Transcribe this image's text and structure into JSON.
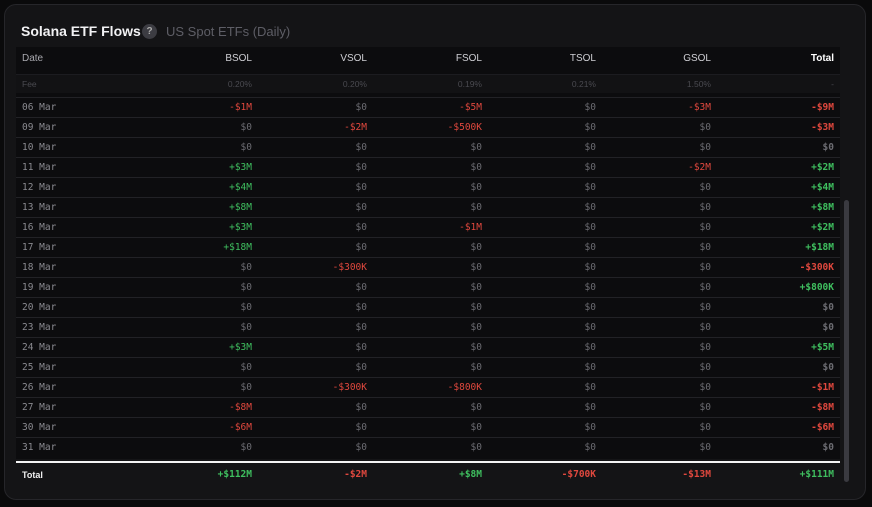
{
  "header": {
    "title": "Solana ETF Flows",
    "help": "?",
    "subtitle": "US Spot ETFs (Daily)"
  },
  "columns": [
    "Date",
    "BSOL",
    "VSOL",
    "FSOL",
    "TSOL",
    "GSOL",
    "Total"
  ],
  "fees": [
    "Fee",
    "0.20%",
    "0.20%",
    "0.19%",
    "0.21%",
    "1.50%",
    "-"
  ],
  "rows": [
    [
      "06 Mar",
      "-$1M",
      "$0",
      "-$5M",
      "$0",
      "-$3M",
      "-$9M"
    ],
    [
      "09 Mar",
      "$0",
      "-$2M",
      "-$500K",
      "$0",
      "$0",
      "-$3M"
    ],
    [
      "10 Mar",
      "$0",
      "$0",
      "$0",
      "$0",
      "$0",
      "$0"
    ],
    [
      "11 Mar",
      "+$3M",
      "$0",
      "$0",
      "$0",
      "-$2M",
      "+$2M"
    ],
    [
      "12 Mar",
      "+$4M",
      "$0",
      "$0",
      "$0",
      "$0",
      "+$4M"
    ],
    [
      "13 Mar",
      "+$8M",
      "$0",
      "$0",
      "$0",
      "$0",
      "+$8M"
    ],
    [
      "16 Mar",
      "+$3M",
      "$0",
      "-$1M",
      "$0",
      "$0",
      "+$2M"
    ],
    [
      "17 Mar",
      "+$18M",
      "$0",
      "$0",
      "$0",
      "$0",
      "+$18M"
    ],
    [
      "18 Mar",
      "$0",
      "-$300K",
      "$0",
      "$0",
      "$0",
      "-$300K"
    ],
    [
      "19 Mar",
      "$0",
      "$0",
      "$0",
      "$0",
      "$0",
      "+$800K"
    ],
    [
      "20 Mar",
      "$0",
      "$0",
      "$0",
      "$0",
      "$0",
      "$0"
    ],
    [
      "23 Mar",
      "$0",
      "$0",
      "$0",
      "$0",
      "$0",
      "$0"
    ],
    [
      "24 Mar",
      "+$3M",
      "$0",
      "$0",
      "$0",
      "$0",
      "+$5M"
    ],
    [
      "25 Mar",
      "$0",
      "$0",
      "$0",
      "$0",
      "$0",
      "$0"
    ],
    [
      "26 Mar",
      "$0",
      "-$300K",
      "-$800K",
      "$0",
      "$0",
      "-$1M"
    ],
    [
      "27 Mar",
      "-$8M",
      "$0",
      "$0",
      "$0",
      "$0",
      "-$8M"
    ],
    [
      "30 Mar",
      "-$6M",
      "$0",
      "$0",
      "$0",
      "$0",
      "-$6M"
    ],
    [
      "31 Mar",
      "$0",
      "$0",
      "$0",
      "$0",
      "$0",
      "$0"
    ]
  ],
  "totals": [
    "Total",
    "+$112M",
    "-$2M",
    "+$8M",
    "-$700K",
    "-$13M",
    "+$111M"
  ],
  "colors": {
    "positive": "#3fbf5f",
    "negative": "#e0483e"
  }
}
